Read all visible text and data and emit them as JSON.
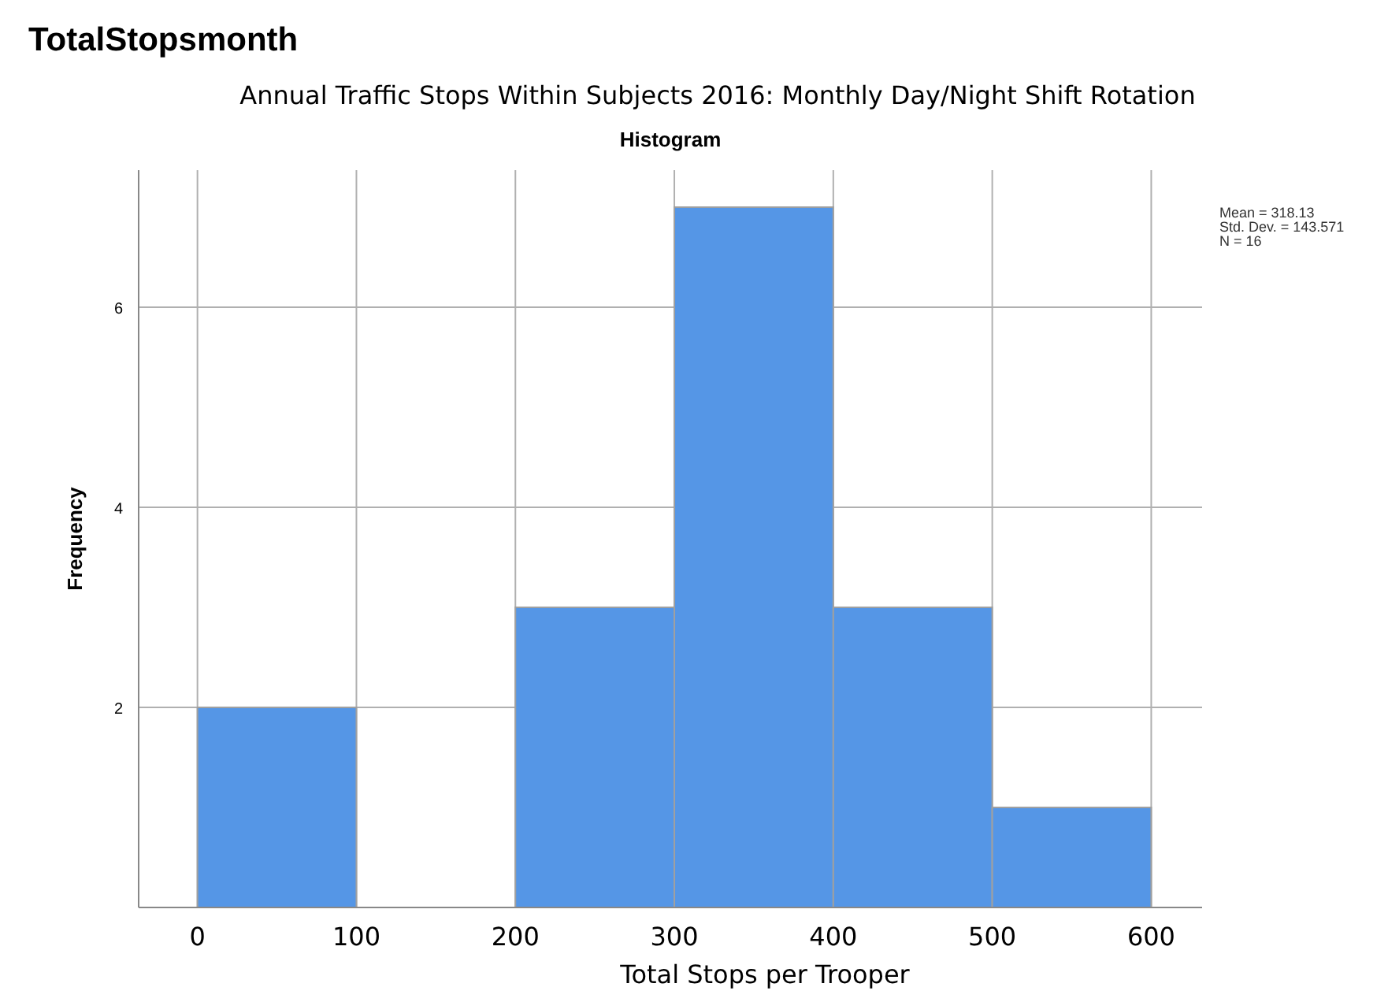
{
  "chart_data": {
    "type": "histogram",
    "title": "TotalStopsmonth",
    "subtitle": "Annual Traffic Stops Within Subjects 2016: Monthly Day/Night Shift Rotation",
    "xlabel": "Total Stops per Trooper",
    "ylabel": "Frequency",
    "annotations": [
      "Histogram",
      "Mean = 318.13",
      "Std. Dev. = 143.571",
      "N = 16"
    ],
    "bins": [
      0,
      100,
      200,
      300,
      400,
      500,
      600
    ],
    "values": [
      2,
      0,
      3,
      7,
      3,
      1
    ],
    "color": "#5596e6",
    "xlim": [
      -37,
      632
    ],
    "xticks": [
      0,
      100,
      200,
      300,
      400,
      500,
      600
    ],
    "ylim": [
      0,
      7.37
    ],
    "yticks": [
      2,
      4,
      6
    ],
    "grid": true
  }
}
